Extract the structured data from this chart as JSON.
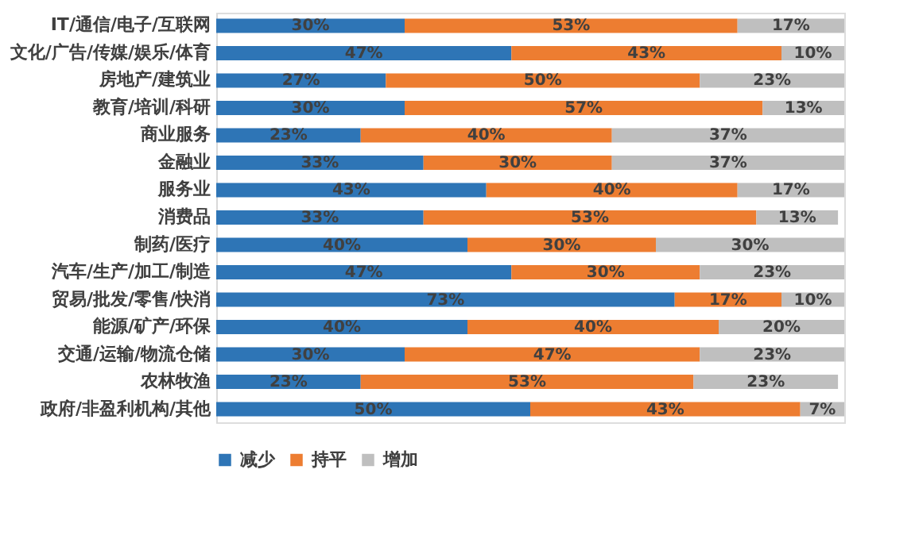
{
  "chart_data": {
    "type": "bar",
    "orientation": "horizontal",
    "stacked": true,
    "categories": [
      "IT/通信/电子/互联网",
      "文化/广告/传媒/娱乐/体育",
      "房地产/建筑业",
      "教育/培训/科研",
      "商业服务",
      "金融业",
      "服务业",
      "消费品",
      "制药/医疗",
      "汽车/生产/加工/制造",
      "贸易/批发/零售/快消",
      "能源/矿产/环保",
      "交通/运输/物流仓储",
      "农林牧渔",
      "政府/非盈利机构/其他"
    ],
    "series": [
      {
        "name": "减少",
        "color": "#2e75b6",
        "values": [
          30,
          47,
          27,
          30,
          23,
          33,
          43,
          33,
          40,
          47,
          73,
          40,
          30,
          23,
          50
        ],
        "value_labels": [
          "30%",
          "47%",
          "27%",
          "30%",
          "23%",
          "33%",
          "43%",
          "33%",
          "40%",
          "47%",
          "73%",
          "40%",
          "30%",
          "23%",
          "50%"
        ]
      },
      {
        "name": "持平",
        "color": "#ed7d31",
        "values": [
          53,
          43,
          50,
          57,
          40,
          30,
          40,
          53,
          30,
          30,
          17,
          40,
          47,
          53,
          43
        ],
        "value_labels": [
          "53%",
          "43%",
          "50%",
          "57%",
          "40%",
          "30%",
          "40%",
          "53%",
          "30%",
          "30%",
          "17%",
          "40%",
          "47%",
          "53%",
          "43%"
        ]
      },
      {
        "name": "增加",
        "color": "#bfbfbf",
        "values": [
          17,
          10,
          23,
          13,
          37,
          37,
          17,
          13,
          30,
          23,
          10,
          20,
          23,
          23,
          7
        ],
        "value_labels": [
          "17%",
          "10%",
          "23%",
          "13%",
          "37%",
          "37%",
          "17%",
          "13%",
          "30%",
          "23%",
          "10%",
          "20%",
          "23%",
          "23%",
          "7%"
        ]
      }
    ],
    "xlim": [
      0,
      100
    ],
    "tick_labels": "y",
    "legend": "bottom"
  }
}
